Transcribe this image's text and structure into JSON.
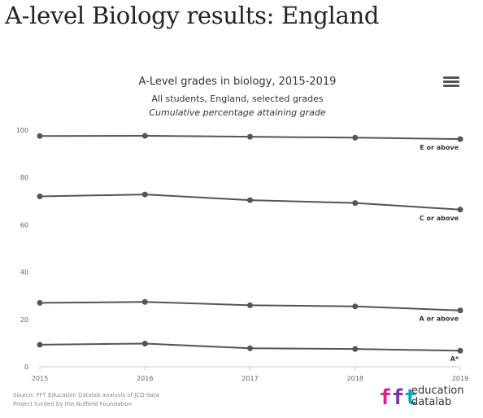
{
  "page": {
    "heading": "A-level Biology results: England"
  },
  "chart_menu": {
    "icon": "hamburger-menu-icon"
  },
  "footer": {
    "source_line1": "Source: FFT Education Datalab analysis of JCQ data",
    "source_line2": "Project funded by the Nuffield Foundation"
  },
  "logo": {
    "mark": "fft",
    "line1": "education",
    "line2": "datalab",
    "colors": [
      "#e5197e",
      "#7b2fa8",
      "#00a7b5"
    ]
  },
  "chart_data": {
    "type": "line",
    "title": "A-Level grades in biology, 2015-2019",
    "subtitle": "All students, England, selected grades",
    "subtitle2": "Cumulative percentage attaining grade",
    "xlabel": "",
    "ylabel": "",
    "x": [
      "2015",
      "2016",
      "2017",
      "2018",
      "2019"
    ],
    "yticks": [
      "0",
      "20",
      "40",
      "60",
      "80",
      "100"
    ],
    "ylim": [
      0,
      100
    ],
    "grid": false,
    "legend": "none",
    "line_color": "#555555",
    "series": [
      {
        "name": "E or above",
        "values": [
          97.5,
          97.6,
          97.2,
          96.8,
          96.2
        ]
      },
      {
        "name": "C or above",
        "values": [
          72.0,
          72.8,
          70.4,
          69.2,
          66.4
        ]
      },
      {
        "name": "A or above",
        "values": [
          27.0,
          27.4,
          26.0,
          25.5,
          23.8
        ]
      },
      {
        "name": "A*",
        "values": [
          9.3,
          9.8,
          7.8,
          7.5,
          6.8
        ]
      }
    ]
  }
}
